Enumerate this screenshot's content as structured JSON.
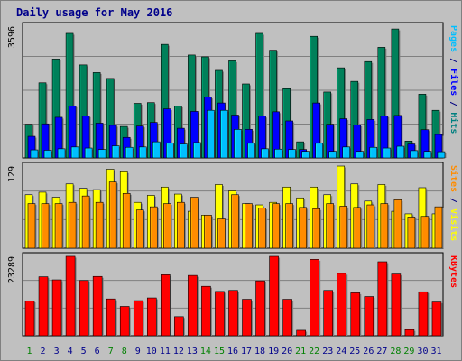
{
  "chart_data": {
    "type": "bar",
    "title": "Daily usage for May 2016",
    "categories": [
      "1",
      "2",
      "3",
      "4",
      "5",
      "6",
      "7",
      "8",
      "9",
      "10",
      "11",
      "12",
      "13",
      "14",
      "15",
      "16",
      "17",
      "18",
      "19",
      "20",
      "21",
      "22",
      "23",
      "24",
      "25",
      "26",
      "27",
      "28",
      "29",
      "30",
      "31"
    ],
    "weekend_days": [
      "1",
      "7",
      "8",
      "14",
      "15",
      "21",
      "22",
      "28",
      "29"
    ],
    "panels": [
      {
        "id": "top",
        "max_label": "3596",
        "ymax": 3596,
        "side_labels": [
          {
            "text": "Pages",
            "color": "#00bfff"
          },
          {
            "text": " / ",
            "color": "#000080"
          },
          {
            "text": "Files",
            "color": "#0000ff"
          },
          {
            "text": " / ",
            "color": "#000080"
          },
          {
            "text": "Hits",
            "color": "#008080"
          }
        ],
        "series": [
          {
            "key": "hits",
            "color": "#00805a",
            "values": [
              920,
              2050,
              2700,
              3400,
              2540,
              2330,
              2170,
              860,
              1490,
              1510,
              3100,
              1420,
              2810,
              2760,
              2390,
              2650,
              2020,
              3400,
              2940,
              1890,
              440,
              3320,
              1800,
              2460,
              2090,
              2630,
              3020,
              3520,
              460,
              1740,
              1300
            ]
          },
          {
            "key": "files",
            "color": "#0000ff",
            "values": [
              590,
              930,
              1110,
              1420,
              1150,
              950,
              890,
              560,
              870,
              970,
              1340,
              810,
              1270,
              1660,
              1500,
              1170,
              780,
              1140,
              1260,
              1010,
              230,
              1500,
              920,
              1070,
              900,
              1050,
              1150,
              1160,
              380,
              770,
              640
            ]
          },
          {
            "key": "pages",
            "color": "#00bfff",
            "values": [
              220,
              210,
              250,
              300,
              270,
              230,
              330,
              290,
              300,
              440,
              410,
              380,
              420,
              1300,
              1300,
              780,
              400,
              250,
              240,
              230,
              180,
              400,
              180,
              300,
              180,
              290,
              270,
              320,
              200,
              180,
              170
            ]
          }
        ]
      },
      {
        "id": "middle",
        "max_label": "129",
        "ymax": 129,
        "side_labels": [
          {
            "text": "Sites",
            "color": "#ff8c00"
          },
          {
            "text": " / ",
            "color": "#000080"
          },
          {
            "text": "Visits",
            "color": "#ffff00"
          }
        ],
        "series": [
          {
            "key": "visits",
            "color": "#ffff00",
            "values": [
              84,
              88,
              80,
              101,
              94,
              92,
              124,
              120,
              72,
              83,
              96,
              85,
              58,
              52,
              100,
              90,
              70,
              68,
              72,
              96,
              79,
              96,
              84,
              129,
              101,
              74,
              100,
              58,
              54,
              95,
              54
            ]
          },
          {
            "key": "sites",
            "color": "#ff8c00",
            "values": [
              70,
              70,
              70,
              72,
              82,
              72,
              104,
              86,
              60,
              65,
              70,
              72,
              80,
              52,
              46,
              84,
              70,
              63,
              70,
              70,
              64,
              62,
              70,
              66,
              64,
              68,
              70,
              76,
              49,
              50,
              65
            ]
          }
        ]
      },
      {
        "id": "bottom",
        "max_label": "23289",
        "ymax": 23289,
        "side_labels": [
          {
            "text": "KBytes",
            "color": "#ff0000"
          }
        ],
        "series": [
          {
            "key": "kbytes",
            "color": "#ff0000",
            "values": [
              10200,
              17300,
              16400,
              23300,
              16200,
              17400,
              10800,
              8600,
              10300,
              11100,
              17900,
              5600,
              17700,
              14500,
              13000,
              13300,
              10700,
              16100,
              23289,
              10700,
              1600,
              22400,
              13300,
              18300,
              12600,
              11500,
              21700,
              18100,
              1800,
              12900,
              9900
            ]
          }
        ]
      }
    ],
    "colors": {
      "background": "#c0c0c0",
      "plot_bg": "#c0c0c0",
      "gridline": "#808080",
      "weekday_label": "#00008b",
      "weekend_label": "#008000"
    }
  }
}
